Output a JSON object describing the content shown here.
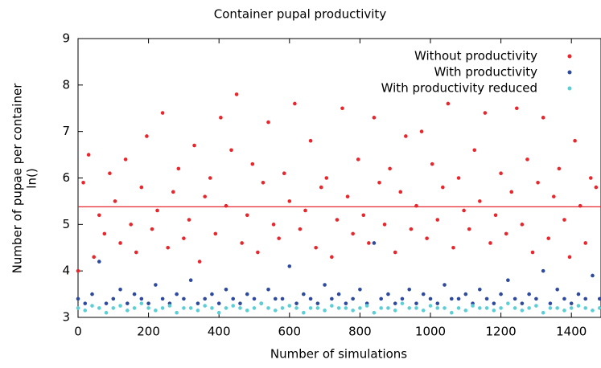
{
  "chart_data": {
    "type": "scatter",
    "title": "Container pupal productivity",
    "xlabel": "Number of simulations",
    "ylabel": [
      "Number of pupae per container",
      "ln()"
    ],
    "xlim": [
      0,
      1484
    ],
    "ylim": [
      3,
      9
    ],
    "xticks": [
      0,
      200,
      400,
      600,
      800,
      1000,
      1200,
      1400
    ],
    "yticks": [
      3,
      4,
      5,
      6,
      7,
      8,
      9
    ],
    "legend": "top-right",
    "hline": 5.38,
    "series": [
      {
        "name": "Without productivity",
        "color": "#e8262c",
        "x": [
          0,
          15,
          30,
          45,
          60,
          75,
          90,
          105,
          120,
          135,
          150,
          165,
          180,
          195,
          210,
          225,
          240,
          255,
          270,
          285,
          300,
          315,
          330,
          345,
          360,
          375,
          390,
          405,
          420,
          435,
          450,
          465,
          480,
          495,
          510,
          525,
          540,
          555,
          570,
          585,
          600,
          615,
          630,
          645,
          660,
          675,
          690,
          705,
          720,
          735,
          750,
          765,
          780,
          795,
          810,
          825,
          840,
          855,
          870,
          885,
          900,
          915,
          930,
          945,
          960,
          975,
          990,
          1005,
          1020,
          1035,
          1050,
          1065,
          1080,
          1095,
          1110,
          1125,
          1140,
          1155,
          1170,
          1185,
          1200,
          1215,
          1230,
          1245,
          1260,
          1275,
          1290,
          1305,
          1320,
          1335,
          1350,
          1365,
          1380,
          1395,
          1410,
          1425,
          1440,
          1455,
          1470
        ],
        "values": [
          4.0,
          5.9,
          6.5,
          4.3,
          5.2,
          4.8,
          6.1,
          5.5,
          4.6,
          6.4,
          5.0,
          4.4,
          5.8,
          6.9,
          4.9,
          5.3,
          7.4,
          4.5,
          5.7,
          6.2,
          4.7,
          5.1,
          6.7,
          4.2,
          5.6,
          6.0,
          4.8,
          7.3,
          5.4,
          6.6,
          7.8,
          4.6,
          5.2,
          6.3,
          4.4,
          5.9,
          7.2,
          5.0,
          4.7,
          6.1,
          5.5,
          7.6,
          4.9,
          5.3,
          6.8,
          4.5,
          5.8,
          6.0,
          4.3,
          5.1,
          7.5,
          5.6,
          4.8,
          6.4,
          5.2,
          4.6,
          7.3,
          5.9,
          5.0,
          6.2,
          4.4,
          5.7,
          6.9,
          4.9,
          5.4,
          7.0,
          4.7,
          6.3,
          5.1,
          5.8,
          7.6,
          4.5,
          6.0,
          5.3,
          4.9,
          6.6,
          5.5,
          7.4,
          4.6,
          5.2,
          6.1,
          4.8,
          5.7,
          7.5,
          5.0,
          6.4,
          4.4,
          5.9,
          7.3,
          4.7,
          5.6,
          6.2,
          5.1,
          4.3,
          6.8,
          5.4,
          4.6,
          6.0,
          5.8
        ]
      },
      {
        "name": "With productivity",
        "color": "#2e4a9e",
        "x": [
          0,
          20,
          40,
          60,
          80,
          100,
          120,
          140,
          160,
          180,
          200,
          220,
          240,
          260,
          280,
          300,
          320,
          340,
          360,
          380,
          400,
          420,
          440,
          460,
          480,
          500,
          520,
          540,
          560,
          580,
          600,
          620,
          640,
          660,
          680,
          700,
          720,
          740,
          760,
          780,
          800,
          820,
          840,
          860,
          880,
          900,
          920,
          940,
          960,
          980,
          1000,
          1020,
          1040,
          1060,
          1080,
          1100,
          1120,
          1140,
          1160,
          1180,
          1200,
          1220,
          1240,
          1260,
          1280,
          1300,
          1320,
          1340,
          1360,
          1380,
          1400,
          1420,
          1440,
          1460,
          1480
        ],
        "values": [
          3.4,
          3.3,
          3.5,
          4.2,
          3.3,
          3.4,
          3.6,
          3.3,
          3.5,
          3.4,
          3.3,
          3.7,
          3.4,
          3.3,
          3.5,
          3.4,
          3.8,
          3.3,
          3.4,
          3.5,
          3.3,
          3.6,
          3.4,
          3.3,
          3.5,
          3.4,
          3.3,
          3.6,
          3.4,
          3.4,
          4.1,
          3.3,
          3.5,
          3.4,
          3.3,
          3.7,
          3.4,
          3.5,
          3.3,
          3.4,
          3.6,
          3.3,
          4.6,
          3.4,
          3.5,
          3.3,
          3.4,
          3.6,
          3.3,
          3.5,
          3.4,
          3.3,
          3.7,
          3.4,
          3.4,
          3.5,
          3.3,
          3.6,
          3.4,
          3.3,
          3.5,
          3.8,
          3.4,
          3.3,
          3.5,
          3.4,
          4.0,
          3.3,
          3.6,
          3.4,
          3.3,
          3.5,
          3.4,
          3.9,
          3.4
        ]
      },
      {
        "name": "With productivity reduced",
        "color": "#5ccfd6",
        "x": [
          0,
          20,
          40,
          60,
          80,
          100,
          120,
          140,
          160,
          180,
          200,
          220,
          240,
          260,
          280,
          300,
          320,
          340,
          360,
          380,
          400,
          420,
          440,
          460,
          480,
          500,
          520,
          540,
          560,
          580,
          600,
          620,
          640,
          660,
          680,
          700,
          720,
          740,
          760,
          780,
          800,
          820,
          840,
          860,
          880,
          900,
          920,
          940,
          960,
          980,
          1000,
          1020,
          1040,
          1060,
          1080,
          1100,
          1120,
          1140,
          1160,
          1180,
          1200,
          1220,
          1240,
          1260,
          1280,
          1300,
          1320,
          1340,
          1360,
          1380,
          1400,
          1420,
          1440,
          1460,
          1480
        ],
        "values": [
          3.2,
          3.15,
          3.25,
          3.2,
          3.1,
          3.2,
          3.25,
          3.15,
          3.2,
          3.3,
          3.2,
          3.15,
          3.2,
          3.25,
          3.1,
          3.2,
          3.2,
          3.15,
          3.25,
          3.2,
          3.1,
          3.2,
          3.25,
          3.2,
          3.15,
          3.2,
          3.3,
          3.2,
          3.15,
          3.2,
          3.25,
          3.2,
          3.1,
          3.2,
          3.2,
          3.15,
          3.25,
          3.2,
          3.2,
          3.15,
          3.2,
          3.25,
          3.1,
          3.2,
          3.2,
          3.15,
          3.3,
          3.2,
          3.2,
          3.15,
          3.25,
          3.2,
          3.2,
          3.1,
          3.2,
          3.15,
          3.25,
          3.2,
          3.2,
          3.15,
          3.2,
          3.3,
          3.2,
          3.15,
          3.2,
          3.25,
          3.1,
          3.2,
          3.2,
          3.15,
          3.2,
          3.25,
          3.2,
          3.15,
          3.2
        ]
      }
    ]
  }
}
